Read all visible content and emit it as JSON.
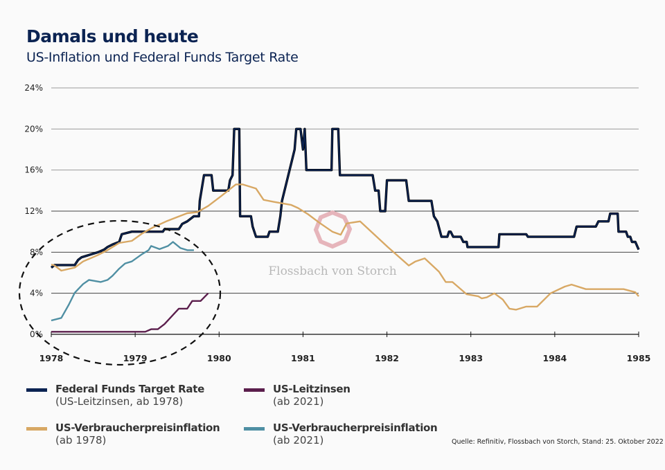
{
  "header": {
    "title": "Damals und heute",
    "subtitle": "US-Inflation und Federal Funds Target Rate"
  },
  "watermark": "Flossbach von Storch",
  "source": "Quelle: Refinitiv, Flossbach von Storch, Stand: 25. Oktober 2022",
  "legend": [
    {
      "line1": "Federal Funds Target Rate",
      "line2": "(US-Leitzinsen, ab 1978)",
      "color": "#0b2352"
    },
    {
      "line1": "US-Leitzinsen",
      "line2": "(ab 2021)",
      "color": "#5b1e4c"
    },
    {
      "line1": "US-Verbraucherpreisinflation",
      "line2": "(ab 1978)",
      "color": "#d8a864"
    },
    {
      "line1": "US-Verbraucherpreisinflation",
      "line2": "(ab 2021)",
      "color": "#4f8fa3"
    }
  ],
  "chart_data": {
    "type": "line",
    "title": "Damals und heute",
    "subtitle": "US-Inflation und Federal Funds Target Rate",
    "xlabel": "",
    "ylabel": "",
    "xlim": [
      1978,
      1985
    ],
    "ylim": [
      0,
      24
    ],
    "x_ticks": [
      "1978",
      "1979",
      "1980",
      "1981",
      "1982",
      "1983",
      "1984",
      "1985"
    ],
    "y_ticks": [
      "0%",
      "4%",
      "8%",
      "12%",
      "16%",
      "20%",
      "24%"
    ],
    "grid": true,
    "annotation": "dashed ellipse highlighting 1978-1979 (comparison with 2021 series)",
    "series": [
      {
        "name": "Federal Funds Target Rate (US-Leitzinsen, ab 1978)",
        "color": "#0b2352",
        "points": [
          [
            1978,
            6.5
          ],
          [
            1978.04,
            6.75
          ],
          [
            1978.28,
            6.75
          ],
          [
            1978.32,
            7.25
          ],
          [
            1978.36,
            7.5
          ],
          [
            1978.46,
            7.75
          ],
          [
            1978.56,
            8.0
          ],
          [
            1978.63,
            8.25
          ],
          [
            1978.67,
            8.5
          ],
          [
            1978.73,
            8.75
          ],
          [
            1978.81,
            9.0
          ],
          [
            1978.84,
            9.75
          ],
          [
            1978.96,
            10.0
          ],
          [
            1979.33,
            10.0
          ],
          [
            1979.35,
            10.25
          ],
          [
            1979.52,
            10.25
          ],
          [
            1979.54,
            10.5
          ],
          [
            1979.56,
            10.75
          ],
          [
            1979.62,
            11.0
          ],
          [
            1979.7,
            11.5
          ],
          [
            1979.76,
            11.5
          ],
          [
            1979.77,
            13.0
          ],
          [
            1979.82,
            15.5
          ],
          [
            1979.91,
            15.5
          ],
          [
            1979.93,
            14.0
          ],
          [
            1980.11,
            14.0
          ],
          [
            1980.13,
            15.0
          ],
          [
            1980.16,
            15.5
          ],
          [
            1980.18,
            20
          ],
          [
            1980.24,
            20
          ],
          [
            1980.25,
            11.5
          ],
          [
            1980.38,
            11.5
          ],
          [
            1980.4,
            10.5
          ],
          [
            1980.44,
            9.5
          ],
          [
            1980.58,
            9.5
          ],
          [
            1980.6,
            10
          ],
          [
            1980.7,
            10
          ],
          [
            1980.73,
            11.5
          ],
          [
            1980.75,
            13
          ],
          [
            1980.81,
            15
          ],
          [
            1980.87,
            17
          ],
          [
            1980.9,
            18
          ],
          [
            1980.92,
            20
          ],
          [
            1980.97,
            20
          ],
          [
            1981.0,
            18
          ],
          [
            1981.02,
            20
          ],
          [
            1981.04,
            16
          ],
          [
            1981.34,
            16
          ],
          [
            1981.35,
            20
          ],
          [
            1981.42,
            20
          ],
          [
            1981.44,
            15.5
          ],
          [
            1981.83,
            15.5
          ],
          [
            1981.86,
            14
          ],
          [
            1981.9,
            14
          ],
          [
            1981.92,
            12
          ],
          [
            1981.98,
            12
          ],
          [
            1982.0,
            15
          ],
          [
            1982.23,
            15
          ],
          [
            1982.26,
            13
          ],
          [
            1982.53,
            13
          ],
          [
            1982.56,
            11.5
          ],
          [
            1982.6,
            11
          ],
          [
            1982.65,
            9.5
          ],
          [
            1982.72,
            9.5
          ],
          [
            1982.74,
            10
          ],
          [
            1982.76,
            10
          ],
          [
            1982.79,
            9.5
          ],
          [
            1982.88,
            9.5
          ],
          [
            1982.91,
            9.0
          ],
          [
            1982.95,
            9.0
          ],
          [
            1982.96,
            8.5
          ],
          [
            1983.33,
            8.5
          ],
          [
            1983.34,
            9.75
          ],
          [
            1983.66,
            9.75
          ],
          [
            1983.68,
            9.5
          ],
          [
            1984.23,
            9.5
          ],
          [
            1984.26,
            10.5
          ],
          [
            1984.49,
            10.5
          ],
          [
            1984.52,
            11
          ],
          [
            1984.64,
            11
          ],
          [
            1984.66,
            11.75
          ],
          [
            1984.75,
            11.75
          ],
          [
            1984.76,
            10
          ],
          [
            1984.85,
            10
          ],
          [
            1984.87,
            9.5
          ],
          [
            1984.9,
            9.5
          ],
          [
            1984.92,
            9
          ],
          [
            1984.96,
            9
          ],
          [
            1985,
            8.25
          ]
        ]
      },
      {
        "name": "US-Verbraucherpreisinflation (ab 1978)",
        "color": "#d8a864",
        "points": [
          [
            1978,
            6.8
          ],
          [
            1978.04,
            6.7
          ],
          [
            1978.12,
            6.2
          ],
          [
            1978.28,
            6.5
          ],
          [
            1978.38,
            7.1
          ],
          [
            1978.55,
            7.7
          ],
          [
            1978.67,
            8.2
          ],
          [
            1978.81,
            8.9
          ],
          [
            1978.96,
            9.1
          ],
          [
            1979.08,
            9.8
          ],
          [
            1979.21,
            10.4
          ],
          [
            1979.37,
            11.0
          ],
          [
            1979.62,
            11.8
          ],
          [
            1979.74,
            11.9
          ],
          [
            1979.87,
            12.5
          ],
          [
            1980.03,
            13.5
          ],
          [
            1980.2,
            14.6
          ],
          [
            1980.28,
            14.6
          ],
          [
            1980.44,
            14.2
          ],
          [
            1980.53,
            13.1
          ],
          [
            1980.65,
            12.9
          ],
          [
            1980.86,
            12.6
          ],
          [
            1980.94,
            12.3
          ],
          [
            1981.06,
            11.7
          ],
          [
            1981.19,
            10.9
          ],
          [
            1981.35,
            10.0
          ],
          [
            1981.45,
            9.7
          ],
          [
            1981.52,
            10.8
          ],
          [
            1981.68,
            11.0
          ],
          [
            1982.01,
            8.5
          ],
          [
            1982.26,
            6.7
          ],
          [
            1982.34,
            7.1
          ],
          [
            1982.45,
            7.4
          ],
          [
            1982.62,
            6.1
          ],
          [
            1982.7,
            5.1
          ],
          [
            1982.78,
            5.1
          ],
          [
            1982.95,
            3.9
          ],
          [
            1983.09,
            3.7
          ],
          [
            1983.13,
            3.5
          ],
          [
            1983.19,
            3.6
          ],
          [
            1983.28,
            4.0
          ],
          [
            1983.38,
            3.4
          ],
          [
            1983.46,
            2.5
          ],
          [
            1983.54,
            2.4
          ],
          [
            1983.66,
            2.7
          ],
          [
            1983.79,
            2.7
          ],
          [
            1983.95,
            4.0
          ],
          [
            1984.12,
            4.65
          ],
          [
            1984.2,
            4.85
          ],
          [
            1984.37,
            4.4
          ],
          [
            1984.82,
            4.4
          ],
          [
            1984.96,
            4.1
          ],
          [
            1985,
            3.7
          ]
        ]
      },
      {
        "name": "US-Verbraucherpreisinflation (ab 2021)",
        "color": "#4f8fa3",
        "points": [
          [
            1978,
            1.35
          ],
          [
            1978.12,
            1.6
          ],
          [
            1978.21,
            2.9
          ],
          [
            1978.28,
            4.05
          ],
          [
            1978.38,
            4.9
          ],
          [
            1978.45,
            5.3
          ],
          [
            1978.59,
            5.1
          ],
          [
            1978.67,
            5.3
          ],
          [
            1978.73,
            5.7
          ],
          [
            1978.81,
            6.4
          ],
          [
            1978.88,
            6.9
          ],
          [
            1978.96,
            7.1
          ],
          [
            1979.08,
            7.8
          ],
          [
            1979.16,
            8.2
          ],
          [
            1979.19,
            8.6
          ],
          [
            1979.29,
            8.3
          ],
          [
            1979.39,
            8.6
          ],
          [
            1979.45,
            9.0
          ],
          [
            1979.54,
            8.4
          ],
          [
            1979.62,
            8.2
          ],
          [
            1979.7,
            8.2
          ]
        ]
      },
      {
        "name": "US-Leitzinsen (ab 2021)",
        "color": "#5b1e4c",
        "points": [
          [
            1978,
            0.25
          ],
          [
            1979.12,
            0.25
          ],
          [
            1979.19,
            0.5
          ],
          [
            1979.27,
            0.5
          ],
          [
            1979.35,
            1.0
          ],
          [
            1979.52,
            2.5
          ],
          [
            1979.62,
            2.5
          ],
          [
            1979.68,
            3.25
          ],
          [
            1979.78,
            3.25
          ],
          [
            1979.87,
            4.0
          ]
        ]
      }
    ]
  }
}
